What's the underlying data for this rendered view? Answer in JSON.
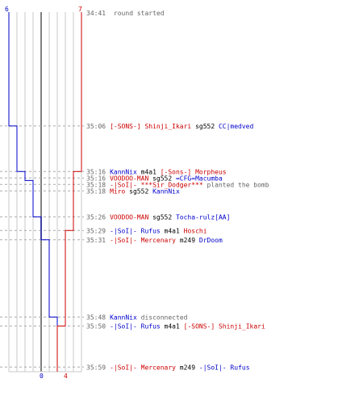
{
  "chart_data": {
    "type": "line",
    "x_axis": "time",
    "start_label": "34:41",
    "start_text": "round started",
    "series": [
      {
        "team": "red",
        "color": "#cc0000",
        "start_count": 7,
        "end_count": 4
      },
      {
        "team": "blue",
        "color": "#0000cc",
        "start_count": 6,
        "end_count": 0
      }
    ],
    "axis_labels": {
      "top_left": "6",
      "top_right": "7",
      "bottom_left": "0",
      "bottom_right": "4"
    },
    "events": [
      {
        "time": "35:06",
        "minutes": 35.1,
        "blue_count": 5,
        "red_count": 7,
        "parts": [
          {
            "text": "[-SONS-] Shinji_Ikari",
            "color": "#cc0000"
          },
          {
            "text": " sg552 ",
            "color": "#000000"
          },
          {
            "text": "CC|medved",
            "color": "#0000cc"
          }
        ]
      },
      {
        "time": "35:16",
        "minutes": 35.267,
        "blue_count": 4,
        "red_count": 7,
        "parts": [
          {
            "text": "KannNix",
            "color": "#0000cc"
          },
          {
            "text": " m4a1 ",
            "color": "#000000"
          },
          {
            "text": "[-Sons-] Morpheus",
            "color": "#cc0000"
          }
        ]
      },
      {
        "time": "35:16",
        "minutes": 35.267,
        "blue_count": 4,
        "red_count": 6,
        "parts": [
          {
            "text": "VOODOO-MAN",
            "color": "#cc0000"
          },
          {
            "text": " sg552 ",
            "color": "#000000"
          },
          {
            "text": "=CFG=Macumba",
            "color": "#0000cc"
          }
        ]
      },
      {
        "time": "35:18",
        "minutes": 35.3,
        "blue_count": 3,
        "red_count": 6,
        "parts": [
          {
            "text": "-|SoI|- ***Sir_Dodger***",
            "color": "#cc0000"
          },
          {
            "text": " planted the bomb",
            "color": "#666666"
          }
        ]
      },
      {
        "time": "35:18",
        "minutes": 35.3,
        "blue_count": 3,
        "red_count": 6,
        "parts": [
          {
            "text": "Miro",
            "color": "#cc0000"
          },
          {
            "text": " sg552 ",
            "color": "#000000"
          },
          {
            "text": "KannNix",
            "color": "#0000cc"
          }
        ]
      },
      {
        "time": "35:26",
        "minutes": 35.433,
        "blue_count": 2,
        "red_count": 6,
        "parts": [
          {
            "text": "VOODOO-MAN",
            "color": "#cc0000"
          },
          {
            "text": " sg552 ",
            "color": "#000000"
          },
          {
            "text": "Tocha-rulz[AA]",
            "color": "#0000cc"
          }
        ]
      },
      {
        "time": "35:29",
        "minutes": 35.483,
        "blue_count": 2,
        "red_count": 5,
        "parts": [
          {
            "text": "-|SoI|- Rufus",
            "color": "#0000cc"
          },
          {
            "text": " m4a1 ",
            "color": "#000000"
          },
          {
            "text": "Hoschi",
            "color": "#cc0000"
          }
        ]
      },
      {
        "time": "35:31",
        "minutes": 35.517,
        "blue_count": 1,
        "red_count": 5,
        "parts": [
          {
            "text": "-|SoI|- Mercenary",
            "color": "#cc0000"
          },
          {
            "text": " m249 ",
            "color": "#000000"
          },
          {
            "text": "DrDoom",
            "color": "#0000cc"
          }
        ]
      },
      {
        "time": "35:48",
        "minutes": 35.8,
        "blue_count": 0,
        "red_count": 5,
        "parts": [
          {
            "text": "KannNix",
            "color": "#0000cc"
          },
          {
            "text": " disconnected",
            "color": "#666666"
          }
        ]
      },
      {
        "time": "35:50",
        "minutes": 35.833,
        "blue_count": 0,
        "red_count": 4,
        "parts": [
          {
            "text": "-|SoI|- Rufus",
            "color": "#0000cc"
          },
          {
            "text": " m4a1 ",
            "color": "#000000"
          },
          {
            "text": "[-SONS-] Shinji_Ikari",
            "color": "#cc0000"
          }
        ]
      },
      {
        "time": "35:59",
        "minutes": 35.983,
        "blue_count": 0,
        "red_count": 4,
        "parts": [
          {
            "text": "-|SoI|- Mercenary",
            "color": "#cc0000"
          },
          {
            "text": " m249 ",
            "color": "#000000"
          },
          {
            "text": "-|SoI|- Rufus",
            "color": "#0000cc"
          }
        ]
      }
    ]
  }
}
